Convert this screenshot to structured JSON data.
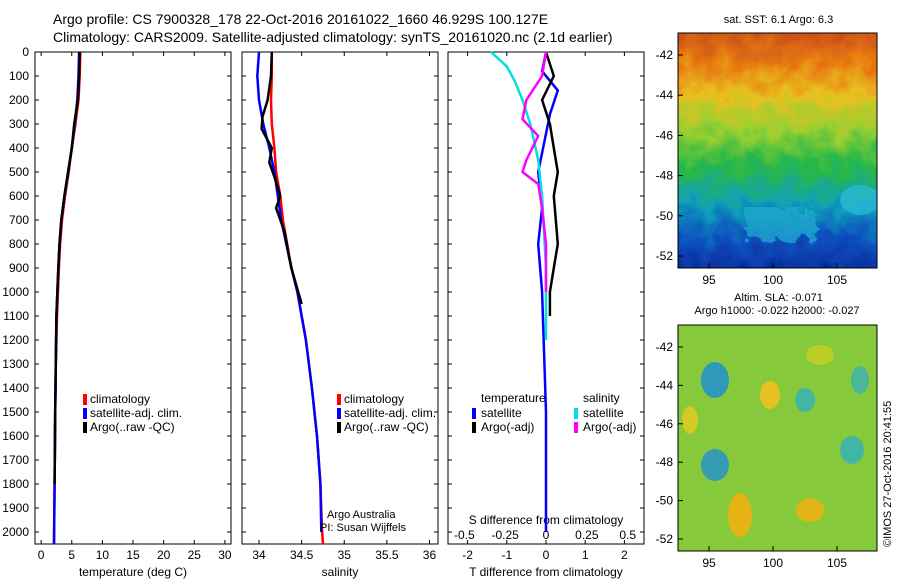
{
  "titles": {
    "line1": "Argo profile: CS 7900328_178 22-Oct-2016 20161022_1660 46.929S 100.127E",
    "line2": "Climatology: CARS2009. Satellite-adjusted climatology: synTS_20161020.nc (2.1d earlier)"
  },
  "legend_t": [
    "climatology",
    "satellite-adj. clim.",
    "Argo(..raw -QC)"
  ],
  "legend_s": [
    "climatology",
    "satellite-adj. clim.",
    "Argo(..raw -QC)"
  ],
  "legend_d": {
    "temp_header": "temperature",
    "sal_header": "salinity",
    "items": [
      "satellite",
      "Argo(-adj)",
      "satellite",
      "Argo(-adj)"
    ]
  },
  "credits": {
    "line1": "Argo Australia",
    "line2": "PI: Susan Wijffels"
  },
  "maps": {
    "sst_title": "sat. SST: 6.1 Argo: 6.3",
    "sla_title1": "Altim. SLA: -0.071",
    "sla_title2": "Argo h1000: -0.022 h2000: -0.027",
    "watermark": "©IMOS 27-Oct-2016 20:41:55",
    "lat_ticks": [
      "-42",
      "-44",
      "-46",
      "-48",
      "-50",
      "-52"
    ],
    "lon_ticks": [
      "95",
      "100",
      "105"
    ]
  },
  "colors": {
    "climatology": "#ff0000",
    "satellite_adj": "#0000ff",
    "argo": "#000000",
    "sat_salinity": "#00e0e0",
    "argo_salinity_adj": "#ff00ff"
  },
  "chart_data": [
    {
      "type": "line",
      "xlabel": "temperature (deg C)",
      "ylabel": "",
      "xlim": [
        -1,
        31
      ],
      "ylim": [
        2050,
        0
      ],
      "xticks": [
        0,
        5,
        10,
        15,
        20,
        25,
        30
      ],
      "yticks": [
        0,
        100,
        200,
        300,
        400,
        500,
        600,
        700,
        800,
        900,
        1000,
        1100,
        1200,
        1300,
        1400,
        1500,
        1600,
        1700,
        1800,
        1900,
        2000
      ],
      "series": [
        {
          "name": "climatology",
          "x": [
            6.4,
            6.3,
            6.1,
            5.6,
            5.0,
            4.5,
            3.9,
            3.4,
            3.1,
            2.9,
            2.6,
            2.4,
            2.3,
            2.2,
            2.1
          ],
          "y": [
            0,
            100,
            200,
            300,
            400,
            500,
            600,
            700,
            800,
            900,
            1100,
            1300,
            1500,
            1800,
            2050
          ]
        },
        {
          "name": "satellite-adj. clim.",
          "x": [
            6.2,
            6.1,
            5.9,
            5.5,
            5.0,
            4.4,
            3.8,
            3.3,
            3.0,
            2.8,
            2.5,
            2.4,
            2.3,
            2.2,
            2.1
          ],
          "y": [
            0,
            100,
            200,
            300,
            400,
            500,
            600,
            700,
            800,
            900,
            1100,
            1300,
            1500,
            1800,
            2050
          ]
        },
        {
          "name": "Argo(..raw -QC)",
          "x": [
            6.3,
            6.2,
            6.0,
            5.4,
            5.0,
            4.4,
            3.8,
            3.3,
            3.0,
            2.8,
            2.5,
            2.4,
            2.3,
            2.2
          ],
          "y": [
            0,
            100,
            200,
            300,
            400,
            500,
            600,
            700,
            800,
            900,
            1100,
            1300,
            1500,
            1800
          ]
        }
      ]
    },
    {
      "type": "line",
      "xlabel": "salinity",
      "ylabel": "",
      "xlim": [
        33.8,
        36.1
      ],
      "ylim": [
        2050,
        0
      ],
      "xticks": [
        34,
        34.5,
        35,
        35.5,
        36
      ],
      "series": [
        {
          "name": "climatology",
          "x": [
            34.15,
            34.15,
            34.14,
            34.15,
            34.18,
            34.2,
            34.25,
            34.28,
            34.33,
            34.38,
            34.45,
            34.55,
            34.62,
            34.68,
            34.72,
            34.74,
            34.75
          ],
          "y": [
            0,
            100,
            200,
            300,
            400,
            500,
            600,
            700,
            800,
            900,
            1000,
            1200,
            1400,
            1600,
            1800,
            2000,
            2050
          ]
        },
        {
          "name": "satellite-adj. clim.",
          "x": [
            34.0,
            33.98,
            34.0,
            34.05,
            34.12,
            34.18,
            34.22,
            34.26,
            34.32,
            34.38,
            34.45,
            34.55,
            34.62,
            34.68,
            34.72,
            34.73
          ],
          "y": [
            0,
            100,
            200,
            300,
            400,
            500,
            600,
            700,
            800,
            900,
            1000,
            1200,
            1400,
            1600,
            1800,
            2000
          ]
        },
        {
          "name": "Argo(..raw -QC)",
          "x": [
            34.15,
            34.14,
            34.1,
            34.04,
            34.03,
            34.15,
            34.12,
            34.18,
            34.25,
            34.2,
            34.3,
            34.35,
            34.38,
            34.42,
            34.46,
            34.5
          ],
          "y": [
            0,
            100,
            200,
            270,
            320,
            400,
            460,
            520,
            600,
            650,
            750,
            850,
            900,
            950,
            1000,
            1050
          ]
        }
      ]
    },
    {
      "type": "line",
      "xlabel": "T difference from climatology",
      "x2label": "S difference from climatology",
      "xlim": [
        -2.5,
        2.5
      ],
      "ylim": [
        2050,
        0
      ],
      "xticks": [
        "-2",
        "-1",
        "0",
        "1",
        "2"
      ],
      "x2ticks": [
        "-0.5",
        "-0.25",
        "0",
        "0.25",
        "0.5"
      ],
      "series": [
        {
          "name": "temperature satellite",
          "x": [
            0,
            -0.1,
            0.3,
            0.1,
            0,
            -0.2,
            -0.1,
            -0.2,
            -0.1,
            0,
            0
          ],
          "y": [
            0,
            80,
            160,
            260,
            340,
            500,
            650,
            800,
            1000,
            1500,
            2000
          ]
        },
        {
          "name": "temperature Argo(-adj)",
          "x": [
            0,
            0.2,
            -0.1,
            0.1,
            0.2,
            0.3,
            0.2,
            0.25,
            0.3,
            0.2,
            0.1,
            0.1
          ],
          "y": [
            0,
            100,
            200,
            300,
            400,
            500,
            600,
            700,
            800,
            900,
            1000,
            1100
          ]
        },
        {
          "name": "salinity satellite",
          "x": [
            -1.4,
            -1.0,
            -0.8,
            -0.6,
            -0.4,
            -0.2,
            -0.1,
            0,
            0
          ],
          "y": [
            0,
            60,
            120,
            200,
            300,
            450,
            600,
            900,
            1200
          ]
        },
        {
          "name": "salinity Argo(-adj)",
          "x": [
            0,
            -0.1,
            -0.5,
            -0.6,
            -0.2,
            -0.5,
            -0.6,
            -0.2,
            -0.1,
            0,
            0
          ],
          "y": [
            0,
            100,
            200,
            280,
            350,
            450,
            500,
            550,
            650,
            800,
            1000
          ]
        }
      ]
    }
  ]
}
